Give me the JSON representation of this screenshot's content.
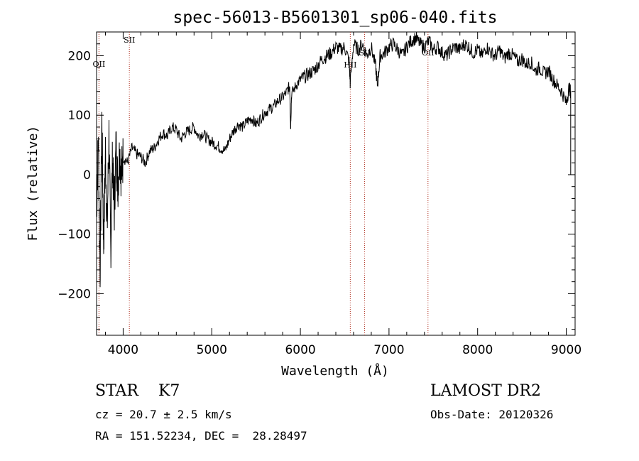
{
  "chart_data": {
    "type": "line",
    "title": "spec-56013-B5601301_sp06-040.fits",
    "xlabel": "Wavelength (Å)",
    "ylabel": "Flux (relative)",
    "xlim": [
      3700,
      9100
    ],
    "ylim": [
      -270,
      240
    ],
    "xticks": [
      4000,
      5000,
      6000,
      7000,
      8000,
      9000
    ],
    "yticks": [
      -200,
      -100,
      0,
      100,
      200
    ],
    "grid": false,
    "series": [
      {
        "x": [
          3700,
          3720,
          3740,
          3760,
          3780,
          3800,
          3820,
          3840,
          3860,
          3880,
          3900,
          3920,
          3940,
          3960,
          3980,
          4000,
          4050,
          4100,
          4150,
          4200,
          4250,
          4300,
          4350,
          4400,
          4450,
          4500,
          4550,
          4600,
          4650,
          4700,
          4750,
          4800,
          4850,
          4900,
          4950,
          5000,
          5050,
          5100,
          5150,
          5200,
          5250,
          5300,
          5350,
          5400,
          5450,
          5500,
          5550,
          5600,
          5650,
          5700,
          5750,
          5800,
          5850,
          5880,
          5890,
          5900,
          5950,
          6000,
          6050,
          6100,
          6150,
          6200,
          6250,
          6300,
          6350,
          6400,
          6450,
          6500,
          6550,
          6562,
          6600,
          6650,
          6700,
          6750,
          6800,
          6850,
          6870,
          6900,
          6950,
          7000,
          7050,
          7100,
          7150,
          7200,
          7250,
          7300,
          7350,
          7400,
          7450,
          7500,
          7550,
          7600,
          7650,
          7700,
          7750,
          7800,
          7850,
          7900,
          7950,
          8000,
          8050,
          8100,
          8150,
          8200,
          8250,
          8300,
          8350,
          8400,
          8450,
          8500,
          8550,
          8600,
          8650,
          8700,
          8750,
          8800,
          8850,
          8900,
          8950,
          9000,
          9030,
          9050
        ],
        "y": [
          -60,
          60,
          -160,
          90,
          -120,
          40,
          -90,
          70,
          -130,
          30,
          -60,
          50,
          -20,
          40,
          0,
          30,
          20,
          45,
          35,
          30,
          20,
          40,
          45,
          60,
          70,
          65,
          80,
          75,
          60,
          70,
          75,
          80,
          65,
          70,
          60,
          55,
          50,
          45,
          40,
          60,
          75,
          85,
          80,
          90,
          95,
          85,
          95,
          105,
          110,
          115,
          125,
          130,
          140,
          150,
          80,
          135,
          150,
          160,
          165,
          170,
          175,
          185,
          195,
          200,
          205,
          215,
          210,
          215,
          190,
          155,
          220,
          210,
          220,
          200,
          215,
          180,
          150,
          200,
          205,
          215,
          220,
          210,
          200,
          215,
          225,
          230,
          220,
          215,
          225,
          210,
          215,
          205,
          200,
          210,
          215,
          210,
          220,
          215,
          205,
          210,
          200,
          215,
          205,
          200,
          210,
          195,
          205,
          200,
          190,
          195,
          185,
          190,
          175,
          180,
          170,
          175,
          160,
          150,
          140,
          120,
          145,
          140
        ]
      }
    ],
    "spectral_lines": [
      {
        "label": "SII",
        "wavelength": 4070
      },
      {
        "label": "OII",
        "wavelength": 3727
      },
      {
        "label": "HII",
        "wavelength": 6563
      },
      {
        "label": "SII",
        "wavelength": 6725
      },
      {
        "label": "OII",
        "wavelength": 7440
      }
    ]
  },
  "info": {
    "object_type": "STAR",
    "subclass": "K7",
    "survey": "LAMOST DR2",
    "cz": "cz = 20.7 ± 2.5 km/s",
    "obs_date": "Obs-Date: 20120326",
    "coords": "RA = 151.52234, DEC =  28.28497"
  }
}
